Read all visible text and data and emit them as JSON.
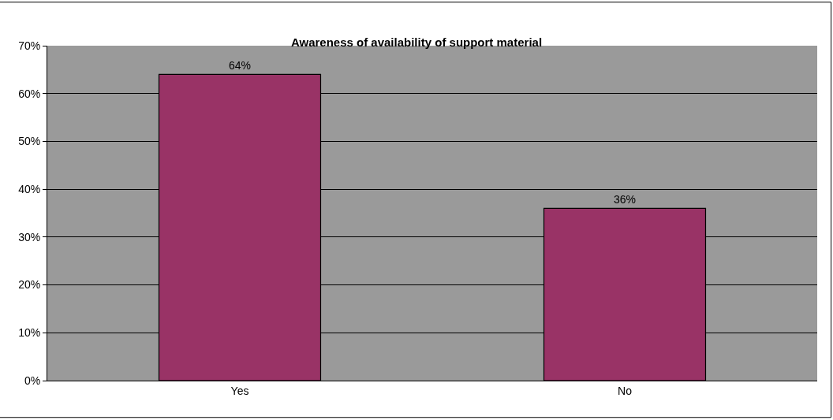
{
  "chart_data": {
    "type": "bar",
    "title": "Awareness of availability of support material",
    "categories": [
      "Yes",
      "No"
    ],
    "series": [
      {
        "color": "#993366",
        "values": [
          64,
          36
        ],
        "value_labels": [
          "64%",
          "36%"
        ]
      }
    ],
    "ylim": [
      0,
      70
    ],
    "yticks": [
      {
        "value": 0,
        "label": "0%"
      },
      {
        "value": 10,
        "label": "10%"
      },
      {
        "value": 20,
        "label": "20%"
      },
      {
        "value": 30,
        "label": "30%"
      },
      {
        "value": 40,
        "label": "40%"
      },
      {
        "value": 50,
        "label": "50%"
      },
      {
        "value": 60,
        "label": "60%"
      },
      {
        "value": 70,
        "label": "70%"
      }
    ],
    "grid": "y",
    "legend": false
  }
}
